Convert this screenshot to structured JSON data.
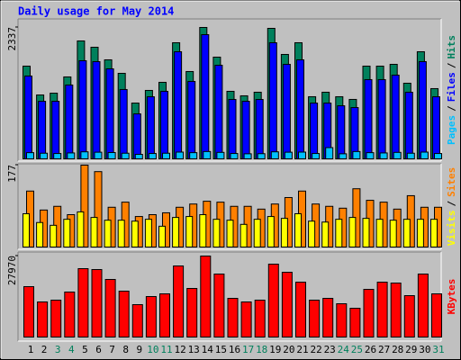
{
  "title": "Daily usage for May 2014",
  "legend_separator": "/",
  "chart_data": [
    {
      "type": "bar",
      "ylim": [
        0,
        2337
      ],
      "yticks": [
        2337
      ],
      "series": [
        {
          "name": "Hits",
          "color": "#00805C",
          "values": [
            1649,
            1136,
            1168,
            1457,
            2097,
            1985,
            1761,
            1521,
            992,
            1217,
            1361,
            2065,
            1553,
            2337,
            1809,
            1201,
            1121,
            1185,
            2321,
            1857,
            2065,
            1105,
            1185,
            1105,
            1057,
            1649,
            1649,
            1681,
            1345,
            1905,
            1249
          ]
        },
        {
          "name": "Files",
          "color": "#0000FF",
          "values": [
            1473,
            1024,
            1024,
            1313,
            1745,
            1729,
            1601,
            1233,
            800,
            1104,
            1201,
            1905,
            1377,
            2209,
            1665,
            1056,
            1024,
            1056,
            2065,
            1681,
            1761,
            992,
            992,
            944,
            912,
            1409,
            1409,
            1489,
            1185,
            1729,
            1104
          ]
        },
        {
          "name": "Pages",
          "color": "#00C0FF",
          "values": [
            110,
            100,
            95,
            105,
            125,
            118,
            112,
            100,
            80,
            95,
            100,
            120,
            110,
            130,
            115,
            95,
            90,
            92,
            125,
            118,
            120,
            95,
            200,
            90,
            130,
            110,
            105,
            115,
            100,
            120,
            95
          ]
        }
      ]
    },
    {
      "type": "bar",
      "ylim": [
        0,
        177
      ],
      "yticks": [
        177
      ],
      "series": [
        {
          "name": "Sites",
          "color": "#FF8000",
          "values": [
            121,
            80,
            88,
            70,
            177,
            163,
            86,
            97,
            66,
            70,
            74,
            86,
            93,
            99,
            97,
            88,
            88,
            82,
            93,
            107,
            121,
            93,
            88,
            84,
            126,
            101,
            97,
            82,
            111,
            86,
            86
          ]
        },
        {
          "name": "Visits",
          "color": "#FFFF00",
          "values": [
            72,
            53,
            47,
            60,
            76,
            64,
            58,
            58,
            56,
            60,
            45,
            64,
            66,
            70,
            60,
            58,
            49,
            60,
            66,
            62,
            72,
            56,
            54,
            60,
            64,
            62,
            60,
            58,
            60,
            60,
            60
          ]
        }
      ]
    },
    {
      "type": "bar",
      "ylim": [
        0,
        27970
      ],
      "yticks": [
        27970
      ],
      "categories": [
        "1",
        "2",
        "3",
        "4",
        "5",
        "6",
        "7",
        "8",
        "9",
        "10",
        "11",
        "12",
        "13",
        "14",
        "15",
        "16",
        "17",
        "18",
        "19",
        "20",
        "21",
        "22",
        "23",
        "24",
        "25",
        "26",
        "27",
        "28",
        "29",
        "30",
        "31"
      ],
      "category_colors": [
        "#000000",
        "#000000",
        "#00805C",
        "#00805C",
        "#000000",
        "#000000",
        "#000000",
        "#000000",
        "#000000",
        "#00805C",
        "#00805C",
        "#000000",
        "#000000",
        "#000000",
        "#000000",
        "#000000",
        "#00805C",
        "#00805C",
        "#000000",
        "#000000",
        "#000000",
        "#000000",
        "#000000",
        "#00805C",
        "#00805C",
        "#000000",
        "#000000",
        "#000000",
        "#000000",
        "#000000",
        "#00805C"
      ],
      "series": [
        {
          "name": "KBytes",
          "color": "#FF0000",
          "values": [
            17404,
            12120,
            12742,
            15539,
            23619,
            23308,
            19890,
            15850,
            11188,
            13985,
            14917,
            24551,
            16782,
            27970,
            21754,
            13363,
            12120,
            12742,
            25173,
            22376,
            18957,
            12742,
            13363,
            11499,
            9945,
            16471,
            18957,
            18647,
            14296,
            21754,
            14917
          ]
        }
      ]
    }
  ]
}
